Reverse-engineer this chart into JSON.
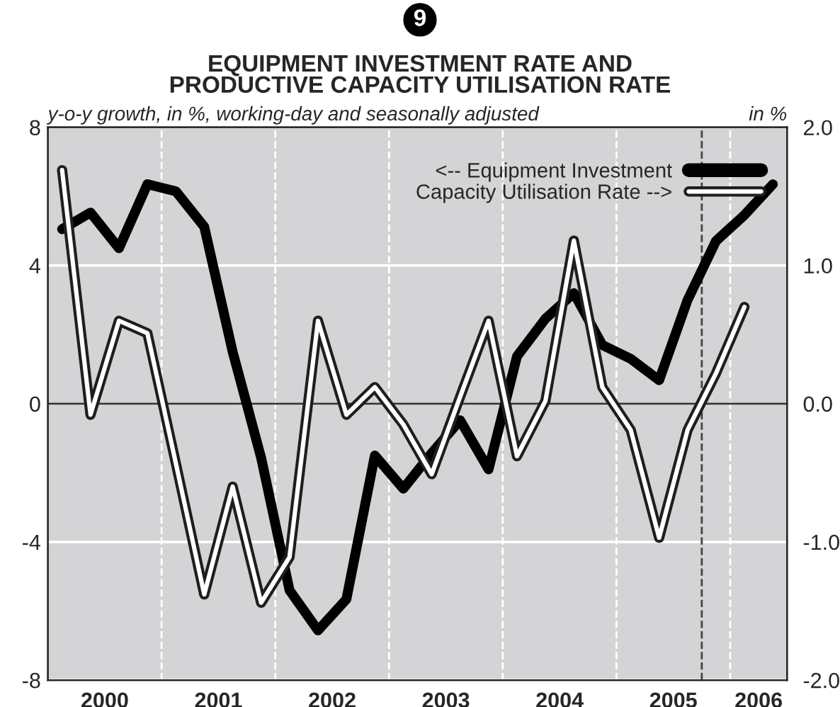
{
  "chart_data": {
    "type": "line",
    "title": "EQUIPMENT INVESTMENT RATE AND\nPRODUCTIVE CAPACITY UTILISATION RATE",
    "ylabel": "y-o-y growth, in %, working-day and seasonally adjusted",
    "y2label": "in %",
    "annotations": [
      "9"
    ],
    "x": [
      2000.125,
      2000.375,
      2000.625,
      2000.875,
      2001.125,
      2001.375,
      2001.625,
      2001.875,
      2002.125,
      2002.375,
      2002.625,
      2002.875,
      2003.125,
      2003.375,
      2003.625,
      2003.875,
      2004.125,
      2004.375,
      2004.625,
      2004.875,
      2005.125,
      2005.375,
      2005.625,
      2005.875,
      2006.125,
      2006.375
    ],
    "series": [
      {
        "name": "<-- Equipment Investment",
        "color": "#000000",
        "values": [
          5.05,
          5.53,
          4.5,
          6.35,
          6.15,
          5.12,
          1.5,
          -1.56,
          -5.4,
          -6.56,
          -5.66,
          -1.5,
          -2.46,
          -1.43,
          -0.48,
          -1.9,
          1.37,
          2.46,
          3.2,
          1.7,
          1.3,
          0.68,
          3.0,
          4.71,
          5.46,
          6.35
        ]
      },
      {
        "name": "Capacity Utilisation Rate -->",
        "color": "#ffffff",
        "axis": "y2",
        "values": [
          1.69,
          -0.08,
          0.6,
          0.51,
          -0.43,
          -1.38,
          -0.6,
          -1.44,
          -1.11,
          0.6,
          -0.08,
          0.12,
          -0.15,
          -0.51,
          0.05,
          0.6,
          -0.38,
          0.02,
          1.18,
          0.12,
          -0.19,
          -0.97,
          -0.19,
          0.22,
          0.7,
          null
        ]
      }
    ],
    "xlim": [
      2000,
      2006.5
    ],
    "xticks": [
      {
        "value": 2000.5,
        "label": "2000"
      },
      {
        "value": 2001.5,
        "label": "2001"
      },
      {
        "value": 2002.5,
        "label": "2002"
      },
      {
        "value": 2003.5,
        "label": "2003"
      },
      {
        "value": 2004.5,
        "label": "2004"
      },
      {
        "value": 2005.5,
        "label": "2005"
      },
      {
        "value": 2006.25,
        "label": "2006"
      }
    ],
    "ylim": [
      -8,
      8
    ],
    "yticks": [
      -8,
      -4,
      0,
      4,
      8
    ],
    "y2lim": [
      -2,
      2
    ],
    "y2ticks": [
      {
        "value": -2,
        "label": "-2.0"
      },
      {
        "value": -1,
        "label": "-1.0"
      },
      {
        "value": 0,
        "label": "0.0"
      },
      {
        "value": 1,
        "label": "1.0"
      },
      {
        "value": 2,
        "label": "2.0"
      }
    ],
    "ref_lines": [
      {
        "axis": "x",
        "value": 2001,
        "color": "#ffffff",
        "line_style": "dashed"
      },
      {
        "axis": "x",
        "value": 2002,
        "color": "#ffffff",
        "line_style": "dashed"
      },
      {
        "axis": "x",
        "value": 2003,
        "color": "#ffffff",
        "line_style": "dashed"
      },
      {
        "axis": "x",
        "value": 2004,
        "color": "#ffffff",
        "line_style": "dashed"
      },
      {
        "axis": "x",
        "value": 2005,
        "color": "#ffffff",
        "line_style": "dashed"
      },
      {
        "axis": "x",
        "value": 2006,
        "color": "#ffffff",
        "line_style": "dashed"
      },
      {
        "axis": "x",
        "value": 2005.75,
        "color": "#444444",
        "line_style": "dashed"
      },
      {
        "axis": "y",
        "value": 0,
        "color": "#333333",
        "line_style": "solid"
      }
    ],
    "grid": "y",
    "legend": "top right",
    "line_style": "solid",
    "marker": "none"
  }
}
